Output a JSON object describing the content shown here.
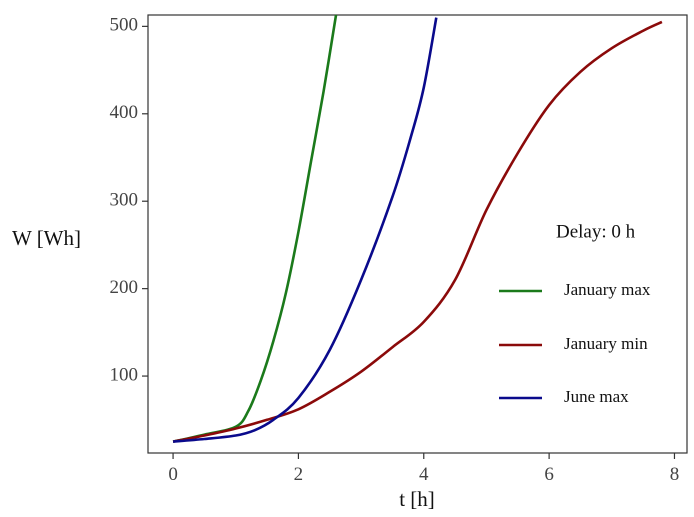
{
  "chart_data": {
    "type": "line",
    "xlabel": "t [h]",
    "ylabel": "W [Wh]",
    "xlim": [
      -0.4,
      8.2
    ],
    "ylim": [
      12,
      513
    ],
    "xticks": [
      0,
      2,
      4,
      6,
      8
    ],
    "yticks": [
      100,
      200,
      300,
      400,
      500
    ],
    "grid": false,
    "legend_position": "right",
    "annotation": "Delay: 0 h",
    "series": [
      {
        "name": "January max",
        "color": "#1b7a1b",
        "x": [
          0,
          0.5,
          1.0,
          1.2,
          1.4,
          1.6,
          1.8,
          2.0,
          2.2,
          2.4,
          2.6
        ],
        "y": [
          25,
          33,
          42,
          60,
          95,
          140,
          195,
          265,
          345,
          425,
          513
        ]
      },
      {
        "name": "January min",
        "color": "#8b0a0a",
        "x": [
          0,
          0.5,
          1.0,
          1.5,
          2.0,
          2.5,
          3.0,
          3.5,
          4.0,
          4.5,
          5.0,
          5.5,
          6.0,
          6.5,
          7.0,
          7.5,
          7.8
        ],
        "y": [
          25,
          32,
          40,
          50,
          62,
          82,
          105,
          133,
          162,
          210,
          290,
          355,
          410,
          448,
          475,
          495,
          505
        ]
      },
      {
        "name": "June max",
        "color": "#0a0a8c",
        "x": [
          0,
          0.5,
          1.0,
          1.3,
          1.6,
          2.0,
          2.5,
          3.0,
          3.5,
          3.8,
          4.0,
          4.2
        ],
        "y": [
          25,
          28,
          32,
          38,
          50,
          75,
          130,
          210,
          305,
          375,
          430,
          510
        ]
      }
    ]
  }
}
